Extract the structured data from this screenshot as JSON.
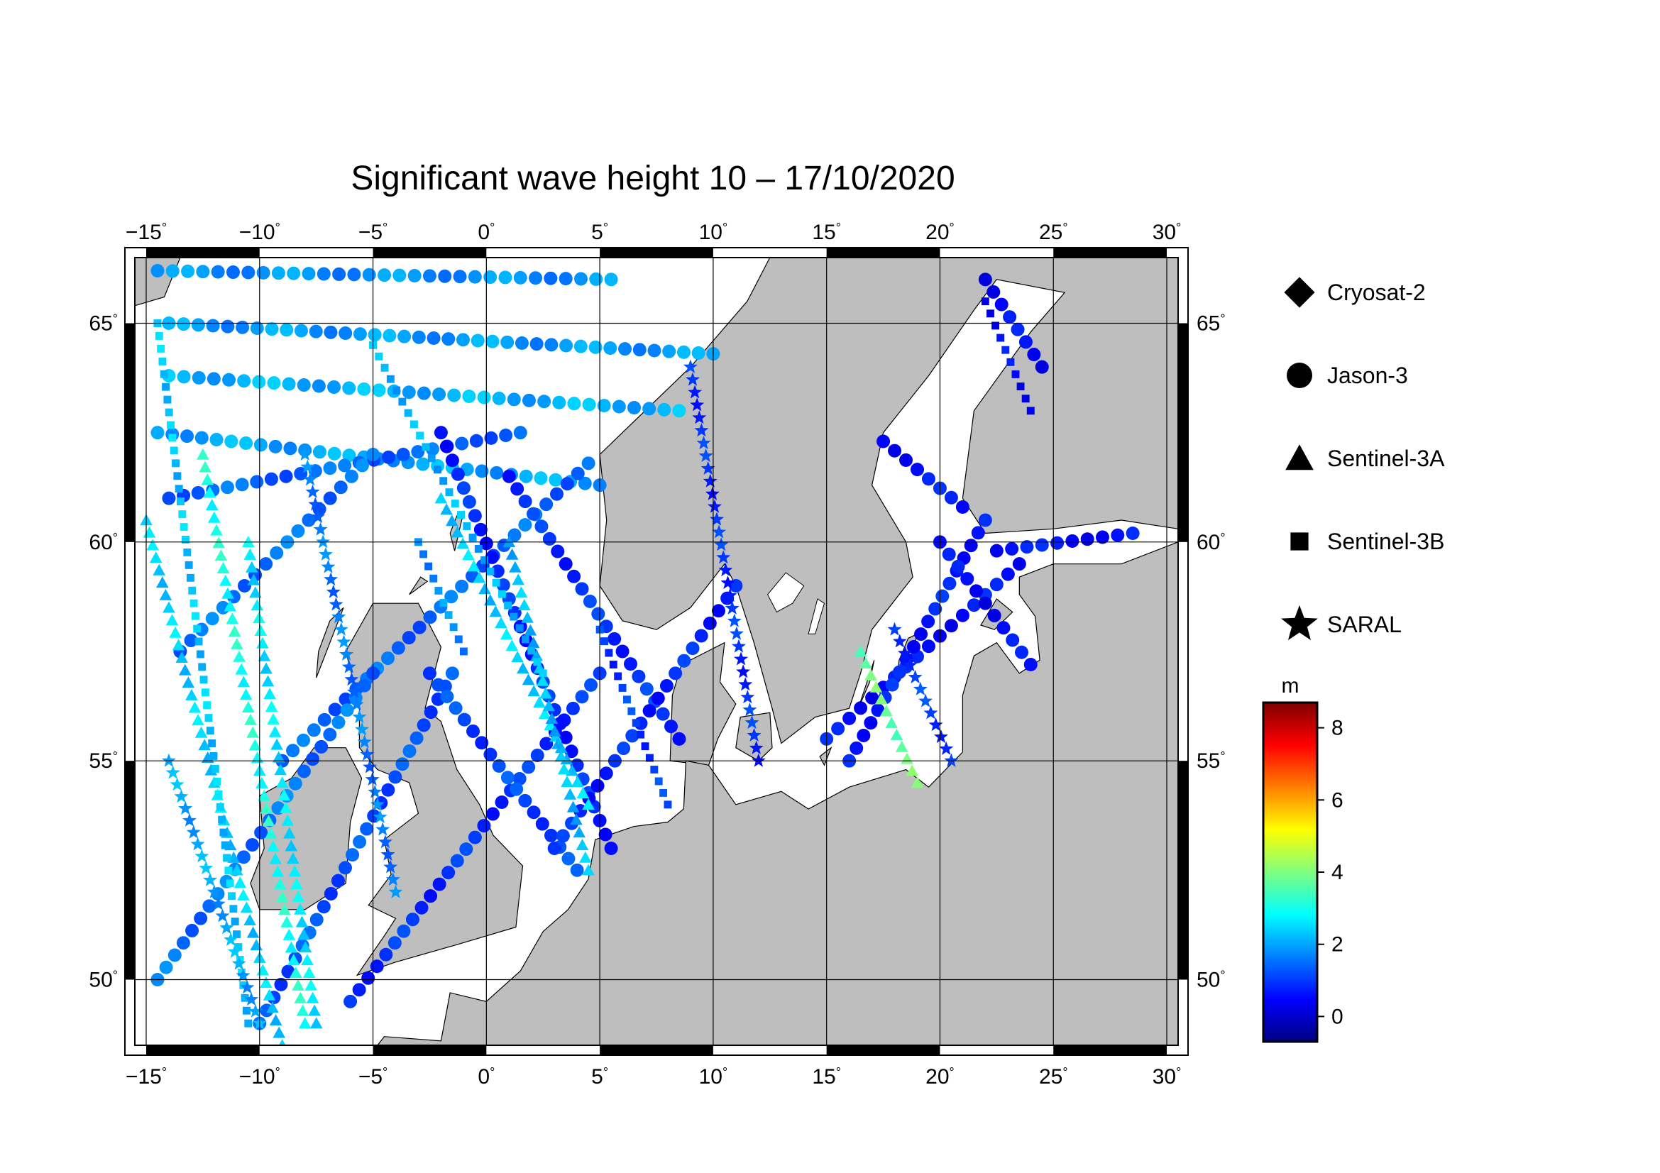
{
  "title": "Significant wave height 10 – 17/10/2020",
  "map": {
    "lon_range": [
      -15.5,
      30.5
    ],
    "lat_range": [
      48.5,
      66.5
    ],
    "lon_ticks": [
      -15,
      -10,
      -5,
      0,
      5,
      10,
      15,
      20,
      25,
      30
    ],
    "lat_ticks": [
      50,
      55,
      60,
      65
    ],
    "lon_labels": [
      "−15",
      "−10",
      "−5",
      "0",
      "5",
      "10",
      "15",
      "20",
      "25",
      "30"
    ],
    "lat_labels": [
      "50",
      "55",
      "60",
      "65"
    ],
    "degree_symbol": "°",
    "land_color": "#bebebe",
    "sea_color": "#ffffff",
    "grid": true
  },
  "legend": {
    "items": [
      {
        "label": "Cryosat-2",
        "marker": "diamond-icon"
      },
      {
        "label": "Jason-3",
        "marker": "circle-icon"
      },
      {
        "label": "Sentinel-3A",
        "marker": "triangle-icon"
      },
      {
        "label": "Sentinel-3B",
        "marker": "square-icon"
      },
      {
        "label": "SARAL",
        "marker": "star-icon"
      }
    ]
  },
  "colorbar": {
    "unit": "m",
    "range": [
      -0.7,
      8.7
    ],
    "ticks": [
      0,
      2,
      4,
      6,
      8
    ],
    "tick_labels": [
      "0",
      "2",
      "4",
      "6",
      "8"
    ],
    "colors": [
      "#00007f",
      "#0000ff",
      "#007fff",
      "#00ffff",
      "#7fff7f",
      "#ffff00",
      "#ff7f00",
      "#ff0000",
      "#7f0000"
    ]
  },
  "chart_data": {
    "type": "scatter",
    "title": "Significant wave height 10 – 17/10/2020",
    "xlabel": "",
    "ylabel": "",
    "xlim": [
      -15.5,
      30.5
    ],
    "ylim": [
      48.5,
      66.5
    ],
    "color_scale": {
      "unit": "m",
      "range": [
        -0.7,
        8.7
      ]
    },
    "series": [
      {
        "name": "Jason-3",
        "marker": "circle",
        "tracks": [
          {
            "lon": [
              -14.5,
              5.5
            ],
            "lat": [
              66.2,
              66.0
            ],
            "swh": 1.8
          },
          {
            "lon": [
              -14.0,
              10.0
            ],
            "lat": [
              65.0,
              64.3
            ],
            "swh": 1.9
          },
          {
            "lon": [
              -14.0,
              8.5
            ],
            "lat": [
              63.8,
              63.0
            ],
            "swh": 2.1
          },
          {
            "lon": [
              -14.5,
              5.0
            ],
            "lat": [
              62.5,
              61.3
            ],
            "swh": 2.0
          },
          {
            "lon": [
              -14.0,
              1.5
            ],
            "lat": [
              61.0,
              62.5
            ],
            "swh": 1.4
          },
          {
            "lon": [
              -13.5,
              -5.0
            ],
            "lat": [
              57.5,
              62.0
            ],
            "swh": 1.5
          },
          {
            "lon": [
              -9.0,
              4.5
            ],
            "lat": [
              55.0,
              61.8
            ],
            "swh": 1.4
          },
          {
            "lon": [
              -14.5,
              -5.0
            ],
            "lat": [
              50.0,
              57.0
            ],
            "swh": 1.5
          },
          {
            "lon": [
              -10.0,
              -1.5
            ],
            "lat": [
              49.0,
              57.0
            ],
            "swh": 1.2
          },
          {
            "lon": [
              -6.0,
              5.0
            ],
            "lat": [
              49.5,
              57.0
            ],
            "swh": 0.9
          },
          {
            "lon": [
              -2.0,
              5.5
            ],
            "lat": [
              62.5,
              53.0
            ],
            "swh": 0.8
          },
          {
            "lon": [
              1.0,
              8.5
            ],
            "lat": [
              61.5,
              55.5
            ],
            "swh": 0.9
          },
          {
            "lon": [
              -2.5,
              4.0
            ],
            "lat": [
              57.0,
              52.5
            ],
            "swh": 1.1
          },
          {
            "lon": [
              3.0,
              11.0
            ],
            "lat": [
              53.0,
              59.0
            ],
            "swh": 0.8
          },
          {
            "lon": [
              15.0,
              23.5
            ],
            "lat": [
              55.5,
              59.5
            ],
            "swh": 0.6
          },
          {
            "lon": [
              16.0,
              22.0
            ],
            "lat": [
              55.0,
              60.5
            ],
            "swh": 0.7
          },
          {
            "lon": [
              17.5,
              21.0
            ],
            "lat": [
              62.3,
              60.8
            ],
            "swh": 0.6
          },
          {
            "lon": [
              22.0,
              24.5
            ],
            "lat": [
              66.0,
              64.0
            ],
            "swh": 0.5
          },
          {
            "lon": [
              22.5,
              28.5
            ],
            "lat": [
              59.8,
              60.2
            ],
            "swh": 0.6
          },
          {
            "lon": [
              20.0,
              24.0
            ],
            "lat": [
              60.0,
              57.2
            ],
            "swh": 0.5
          }
        ]
      },
      {
        "name": "Sentinel-3A",
        "marker": "triangle",
        "tracks": [
          {
            "lon": [
              -15.0,
              -9.0
            ],
            "lat": [
              60.5,
              48.5
            ],
            "swh": 2.4
          },
          {
            "lon": [
              -12.5,
              -8.0
            ],
            "lat": [
              62.0,
              49.0
            ],
            "swh": 3.0
          },
          {
            "lon": [
              -10.5,
              -7.5
            ],
            "lat": [
              60.0,
              49.0
            ],
            "swh": 2.6
          },
          {
            "lon": [
              -2.0,
              4.5
            ],
            "lat": [
              61.0,
              54.0
            ],
            "swh": 2.4
          },
          {
            "lon": [
              1.0,
              4.5
            ],
            "lat": [
              60.0,
              52.5
            ],
            "swh": 2.2
          },
          {
            "lon": [
              16.5,
              19.0
            ],
            "lat": [
              57.5,
              54.5
            ],
            "swh": 3.8
          }
        ]
      },
      {
        "name": "Sentinel-3B",
        "marker": "square",
        "tracks": [
          {
            "lon": [
              -14.5,
              -10.5
            ],
            "lat": [
              65.0,
              49.0
            ],
            "swh": 2.3
          },
          {
            "lon": [
              -5.0,
              2.5
            ],
            "lat": [
              64.5,
              57.0
            ],
            "swh": 2.1
          },
          {
            "lon": [
              5.0,
              8.0
            ],
            "lat": [
              58.0,
              54.0
            ],
            "swh": 1.0
          },
          {
            "lon": [
              -3.0,
              -1.0
            ],
            "lat": [
              60.0,
              57.5
            ],
            "swh": 1.8
          },
          {
            "lon": [
              22.0,
              24.0
            ],
            "lat": [
              65.5,
              63.0
            ],
            "swh": 0.5
          }
        ]
      },
      {
        "name": "SARAL",
        "marker": "star",
        "tracks": [
          {
            "lon": [
              -14.0,
              -10.0
            ],
            "lat": [
              55.0,
              49.0
            ],
            "swh": 2.0
          },
          {
            "lon": [
              -8.0,
              -4.0
            ],
            "lat": [
              62.0,
              52.0
            ],
            "swh": 1.6
          },
          {
            "lon": [
              9.0,
              12.0
            ],
            "lat": [
              64.0,
              55.0
            ],
            "swh": 0.9
          },
          {
            "lon": [
              18.0,
              20.5
            ],
            "lat": [
              58.0,
              55.0
            ],
            "swh": 1.0
          }
        ]
      }
    ]
  }
}
